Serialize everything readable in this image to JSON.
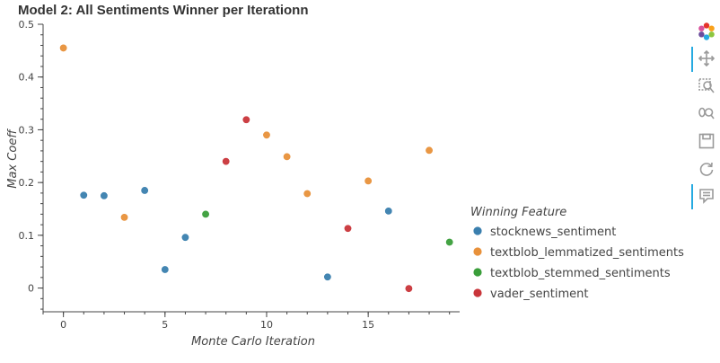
{
  "chart_data": {
    "type": "scatter",
    "title": "Model 2: All Sentiments Winner per Iterationn",
    "xlabel": "Monte Carlo Iteration",
    "ylabel": "Max Coeff",
    "xlim": [
      -1,
      19.5
    ],
    "ylim": [
      -0.045,
      0.5
    ],
    "xticks": [
      0,
      5,
      10,
      15
    ],
    "yticks": [
      0,
      0.1,
      0.2,
      0.3,
      0.4,
      0.5
    ],
    "ytick_labels": [
      "0",
      "0.1",
      "0.2",
      "0.3",
      "0.4",
      "0.5"
    ],
    "grid": false,
    "legend_title": "Winning Feature",
    "legend_position": "right",
    "series": [
      {
        "name": "stocknews_sentiment",
        "color": "#3a7fae",
        "points": [
          [
            1,
            0.176
          ],
          [
            2,
            0.175
          ],
          [
            4,
            0.185
          ],
          [
            5,
            0.035
          ],
          [
            6,
            0.096
          ],
          [
            13,
            0.021
          ],
          [
            16,
            0.146
          ]
        ]
      },
      {
        "name": "textblob_lemmatized_sentiments",
        "color": "#e8913a",
        "points": [
          [
            0,
            0.455
          ],
          [
            3,
            0.134
          ],
          [
            10,
            0.29
          ],
          [
            11,
            0.249
          ],
          [
            12,
            0.179
          ],
          [
            15,
            0.203
          ],
          [
            18,
            0.261
          ]
        ]
      },
      {
        "name": "textblob_stemmed_sentiments",
        "color": "#3a9e3a",
        "points": [
          [
            7,
            0.14
          ],
          [
            19,
            0.087
          ]
        ]
      },
      {
        "name": "vader_sentiment",
        "color": "#c9353a",
        "points": [
          [
            8,
            0.24
          ],
          [
            9,
            0.319
          ],
          [
            14,
            0.113
          ],
          [
            17,
            -0.001
          ]
        ]
      }
    ]
  },
  "toolbar": {
    "tools": [
      {
        "icon": "bokeh-logo-icon",
        "active": false
      },
      {
        "icon": "pan-icon",
        "active": true
      },
      {
        "icon": "box-zoom-icon",
        "active": false
      },
      {
        "icon": "wheel-zoom-icon",
        "active": false
      },
      {
        "icon": "save-icon",
        "active": false
      },
      {
        "icon": "reset-icon",
        "active": false
      },
      {
        "icon": "hover-icon",
        "active": true
      }
    ]
  }
}
